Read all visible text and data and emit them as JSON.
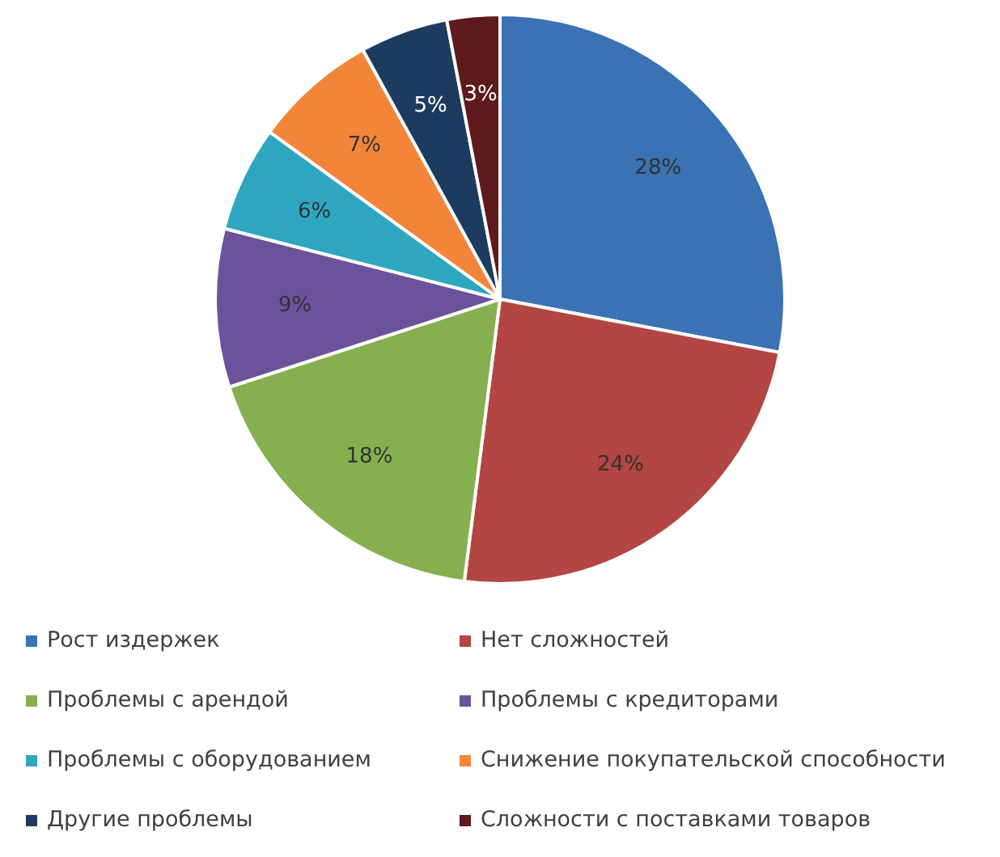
{
  "chart_data": {
    "type": "pie",
    "categories": [
      "Рост издержек",
      "Нет сложностей",
      "Проблемы с арендой",
      "Проблемы с кредиторами",
      "Проблемы с оборудованием",
      "Снижение покупательской способности",
      "Другие проблемы",
      "Сложности с поставками товаров"
    ],
    "values": [
      28,
      24,
      18,
      9,
      6,
      7,
      5,
      3
    ],
    "colors": [
      "#3a72b4",
      "#b34542",
      "#86b04f",
      "#6b529a",
      "#2ea6c0",
      "#f28539",
      "#1d3b5e",
      "#5e1a1c"
    ],
    "value_labels": [
      "28%",
      "24%",
      "18%",
      "9%",
      "6%",
      "7%",
      "5%",
      "3%"
    ],
    "legend": "bottom"
  }
}
